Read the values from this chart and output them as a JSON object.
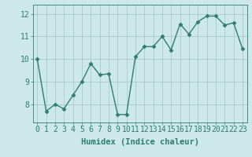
{
  "x": [
    0,
    1,
    2,
    3,
    4,
    5,
    6,
    7,
    8,
    9,
    10,
    11,
    12,
    13,
    14,
    15,
    16,
    17,
    18,
    19,
    20,
    21,
    22,
    23
  ],
  "y": [
    10.0,
    7.7,
    8.0,
    7.8,
    8.4,
    9.0,
    9.8,
    9.3,
    9.35,
    7.55,
    7.55,
    10.1,
    10.55,
    10.55,
    11.0,
    10.4,
    11.55,
    11.1,
    11.65,
    11.9,
    11.9,
    11.5,
    11.6,
    10.45
  ],
  "line_color": "#2e7d6e",
  "marker": "D",
  "markersize": 2.5,
  "linewidth": 1.0,
  "bg_color": "#cce8e8",
  "grid_color": "#aacaca",
  "xlabel": "Humidex (Indice chaleur)",
  "xlabel_fontsize": 7.5,
  "tick_fontsize": 7,
  "ylim": [
    7.2,
    12.4
  ],
  "xlim": [
    -0.5,
    23.5
  ],
  "yticks": [
    8,
    9,
    10,
    11,
    12
  ],
  "xticks": [
    0,
    1,
    2,
    3,
    4,
    5,
    6,
    7,
    8,
    9,
    10,
    11,
    12,
    13,
    14,
    15,
    16,
    17,
    18,
    19,
    20,
    21,
    22,
    23
  ]
}
